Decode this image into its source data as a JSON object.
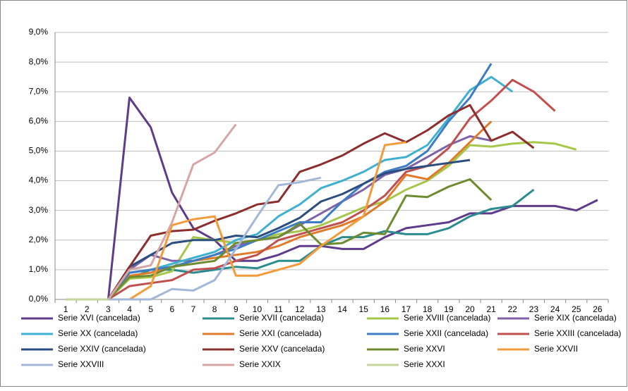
{
  "chart_data": {
    "type": "line",
    "categories": [
      "1",
      "2",
      "3",
      "4",
      "5",
      "6",
      "7",
      "8",
      "9",
      "10",
      "11",
      "12",
      "13",
      "14",
      "15",
      "16",
      "17",
      "18",
      "19",
      "20",
      "21",
      "22",
      "23",
      "24",
      "25",
      "26"
    ],
    "ylim": [
      0,
      9
    ],
    "yticks": [
      {
        "value": 0,
        "label": "0,0%"
      },
      {
        "value": 1,
        "label": "1,0%"
      },
      {
        "value": 2,
        "label": "2,0%"
      },
      {
        "value": 3,
        "label": "3,0%"
      },
      {
        "value": 4,
        "label": "4,0%"
      },
      {
        "value": 5,
        "label": "5,0%"
      },
      {
        "value": 6,
        "label": "6,0%"
      },
      {
        "value": 7,
        "label": "7,0%"
      },
      {
        "value": 8,
        "label": "8,0%"
      },
      {
        "value": 9,
        "label": "9,0%"
      }
    ],
    "grid": true,
    "legend": "bottom",
    "series": [
      {
        "name": "Serie XVI (cancelada)",
        "color": "#5f3b8c",
        "values": [
          0,
          0,
          0,
          6.8,
          5.8,
          3.6,
          2.4,
          2.0,
          1.3,
          1.3,
          1.5,
          1.8,
          1.8,
          1.7,
          1.7,
          2.1,
          2.4,
          2.5,
          2.6,
          2.9,
          2.9,
          3.15,
          3.15,
          3.15,
          3.0,
          3.35
        ]
      },
      {
        "name": "Serie XVII (cancelada)",
        "color": "#2a8c8e",
        "values": [
          0,
          0,
          0,
          0.7,
          1.0,
          1.0,
          0.9,
          1.0,
          1.1,
          1.05,
          1.3,
          1.3,
          1.8,
          2.1,
          2.1,
          2.3,
          2.2,
          2.2,
          2.4,
          2.8,
          3.05,
          3.15,
          3.7,
          null,
          null,
          null
        ]
      },
      {
        "name": "Serie XVIII (cancelada)",
        "color": "#a6c84a",
        "values": [
          0,
          0,
          0,
          0.7,
          0.75,
          0.95,
          2.1,
          2.0,
          1.9,
          2.0,
          2.2,
          2.3,
          2.5,
          2.8,
          3.1,
          3.3,
          3.7,
          4.0,
          4.5,
          5.2,
          5.15,
          5.25,
          5.3,
          5.25,
          5.05,
          null
        ]
      },
      {
        "name": "Serie XIX (cancelada)",
        "color": "#7f62a8",
        "values": [
          0,
          0,
          0,
          1.0,
          1.5,
          1.3,
          1.3,
          1.5,
          1.8,
          2.0,
          2.1,
          2.5,
          2.9,
          3.3,
          3.7,
          4.2,
          4.4,
          4.8,
          5.2,
          5.5,
          5.35,
          null,
          null,
          null,
          null,
          null
        ]
      },
      {
        "name": "Serie XX (cancelada)",
        "color": "#3fb0d0",
        "values": [
          0,
          0,
          0,
          0.9,
          1.0,
          1.2,
          1.4,
          1.6,
          2.0,
          2.2,
          2.8,
          3.2,
          3.75,
          4.0,
          4.3,
          4.7,
          4.8,
          5.2,
          6.1,
          7.05,
          7.5,
          7.0,
          null,
          null,
          null,
          null
        ]
      },
      {
        "name": "Serie XXI (cancelada)",
        "color": "#e07b29",
        "values": [
          0,
          0,
          0,
          0.8,
          0.9,
          1.1,
          1.3,
          1.4,
          1.5,
          1.6,
          1.8,
          2.1,
          2.3,
          2.5,
          2.8,
          3.3,
          4.2,
          4.05,
          4.6,
          5.3,
          6.0,
          null,
          null,
          null,
          null,
          null
        ]
      },
      {
        "name": "Serie XXII (cancelada)",
        "color": "#3e7cc4",
        "values": [
          0,
          0,
          0,
          0.9,
          1.0,
          1.1,
          1.3,
          1.5,
          1.7,
          2.0,
          2.3,
          2.6,
          2.6,
          3.3,
          3.9,
          4.3,
          4.5,
          5.0,
          6.0,
          6.8,
          7.95,
          null,
          null,
          null,
          null,
          null
        ]
      },
      {
        "name": "Serie XXIII (cancelada)",
        "color": "#c0504d",
        "values": [
          0,
          0,
          0,
          0.45,
          0.55,
          0.65,
          1.0,
          1.05,
          1.3,
          1.5,
          2.0,
          2.2,
          2.4,
          2.6,
          3.0,
          3.5,
          4.3,
          4.5,
          5.1,
          6.1,
          6.7,
          7.4,
          7.0,
          6.35,
          null,
          null
        ]
      },
      {
        "name": "Serie XXIV (cancelada)",
        "color": "#2c4e7e",
        "values": [
          0,
          0,
          0,
          1.1,
          1.5,
          1.9,
          2.0,
          2.0,
          2.15,
          2.1,
          2.4,
          2.75,
          3.3,
          3.55,
          3.9,
          4.25,
          4.4,
          4.5,
          4.6,
          4.7,
          null,
          null,
          null,
          null,
          null,
          null
        ]
      },
      {
        "name": "Serie XXV (cancelada)",
        "color": "#8b2e2c",
        "values": [
          0,
          0,
          0,
          1.1,
          2.15,
          2.3,
          2.35,
          2.65,
          2.9,
          3.2,
          3.3,
          4.3,
          4.55,
          4.85,
          5.25,
          5.6,
          5.3,
          5.7,
          6.2,
          6.55,
          5.35,
          5.65,
          5.1,
          null,
          null,
          null
        ]
      },
      {
        "name": "Serie XXVI",
        "color": "#6e8b2f",
        "values": [
          0,
          0,
          0,
          0.75,
          0.8,
          1.1,
          1.2,
          1.3,
          1.9,
          2.0,
          2.1,
          2.55,
          1.85,
          1.9,
          2.25,
          2.2,
          3.5,
          3.45,
          3.8,
          4.05,
          3.35,
          null,
          null,
          null,
          null,
          null
        ]
      },
      {
        "name": "Serie XXVII",
        "color": "#f39a3a",
        "values": [
          0,
          0,
          0,
          0,
          0.45,
          2.5,
          2.7,
          2.8,
          0.8,
          0.8,
          1.0,
          1.2,
          1.8,
          2.3,
          2.8,
          5.2,
          5.3,
          null,
          null,
          null,
          null,
          null,
          null,
          null,
          null,
          null
        ]
      },
      {
        "name": "Serie XXVIII",
        "color": "#a3b7d8",
        "values": [
          0,
          0,
          0,
          0,
          0,
          0.35,
          0.3,
          0.65,
          1.7,
          2.8,
          3.85,
          3.95,
          4.1,
          null,
          null,
          null,
          null,
          null,
          null,
          null,
          null,
          null,
          null,
          null,
          null,
          null
        ]
      },
      {
        "name": "Serie XXIX",
        "color": "#d6a6a5",
        "values": [
          0,
          0,
          0,
          1.0,
          1.15,
          2.6,
          4.55,
          4.95,
          5.9,
          null,
          null,
          null,
          null,
          null,
          null,
          null,
          null,
          null,
          null,
          null,
          null,
          null,
          null,
          null,
          null,
          null
        ]
      },
      {
        "name": "Serie XXXI",
        "color": "#c3d69b",
        "values": [
          0,
          0,
          0,
          null,
          null,
          null,
          null,
          null,
          null,
          null,
          null,
          null,
          null,
          null,
          null,
          null,
          null,
          null,
          null,
          null,
          null,
          null,
          null,
          null,
          null,
          null
        ]
      }
    ]
  }
}
